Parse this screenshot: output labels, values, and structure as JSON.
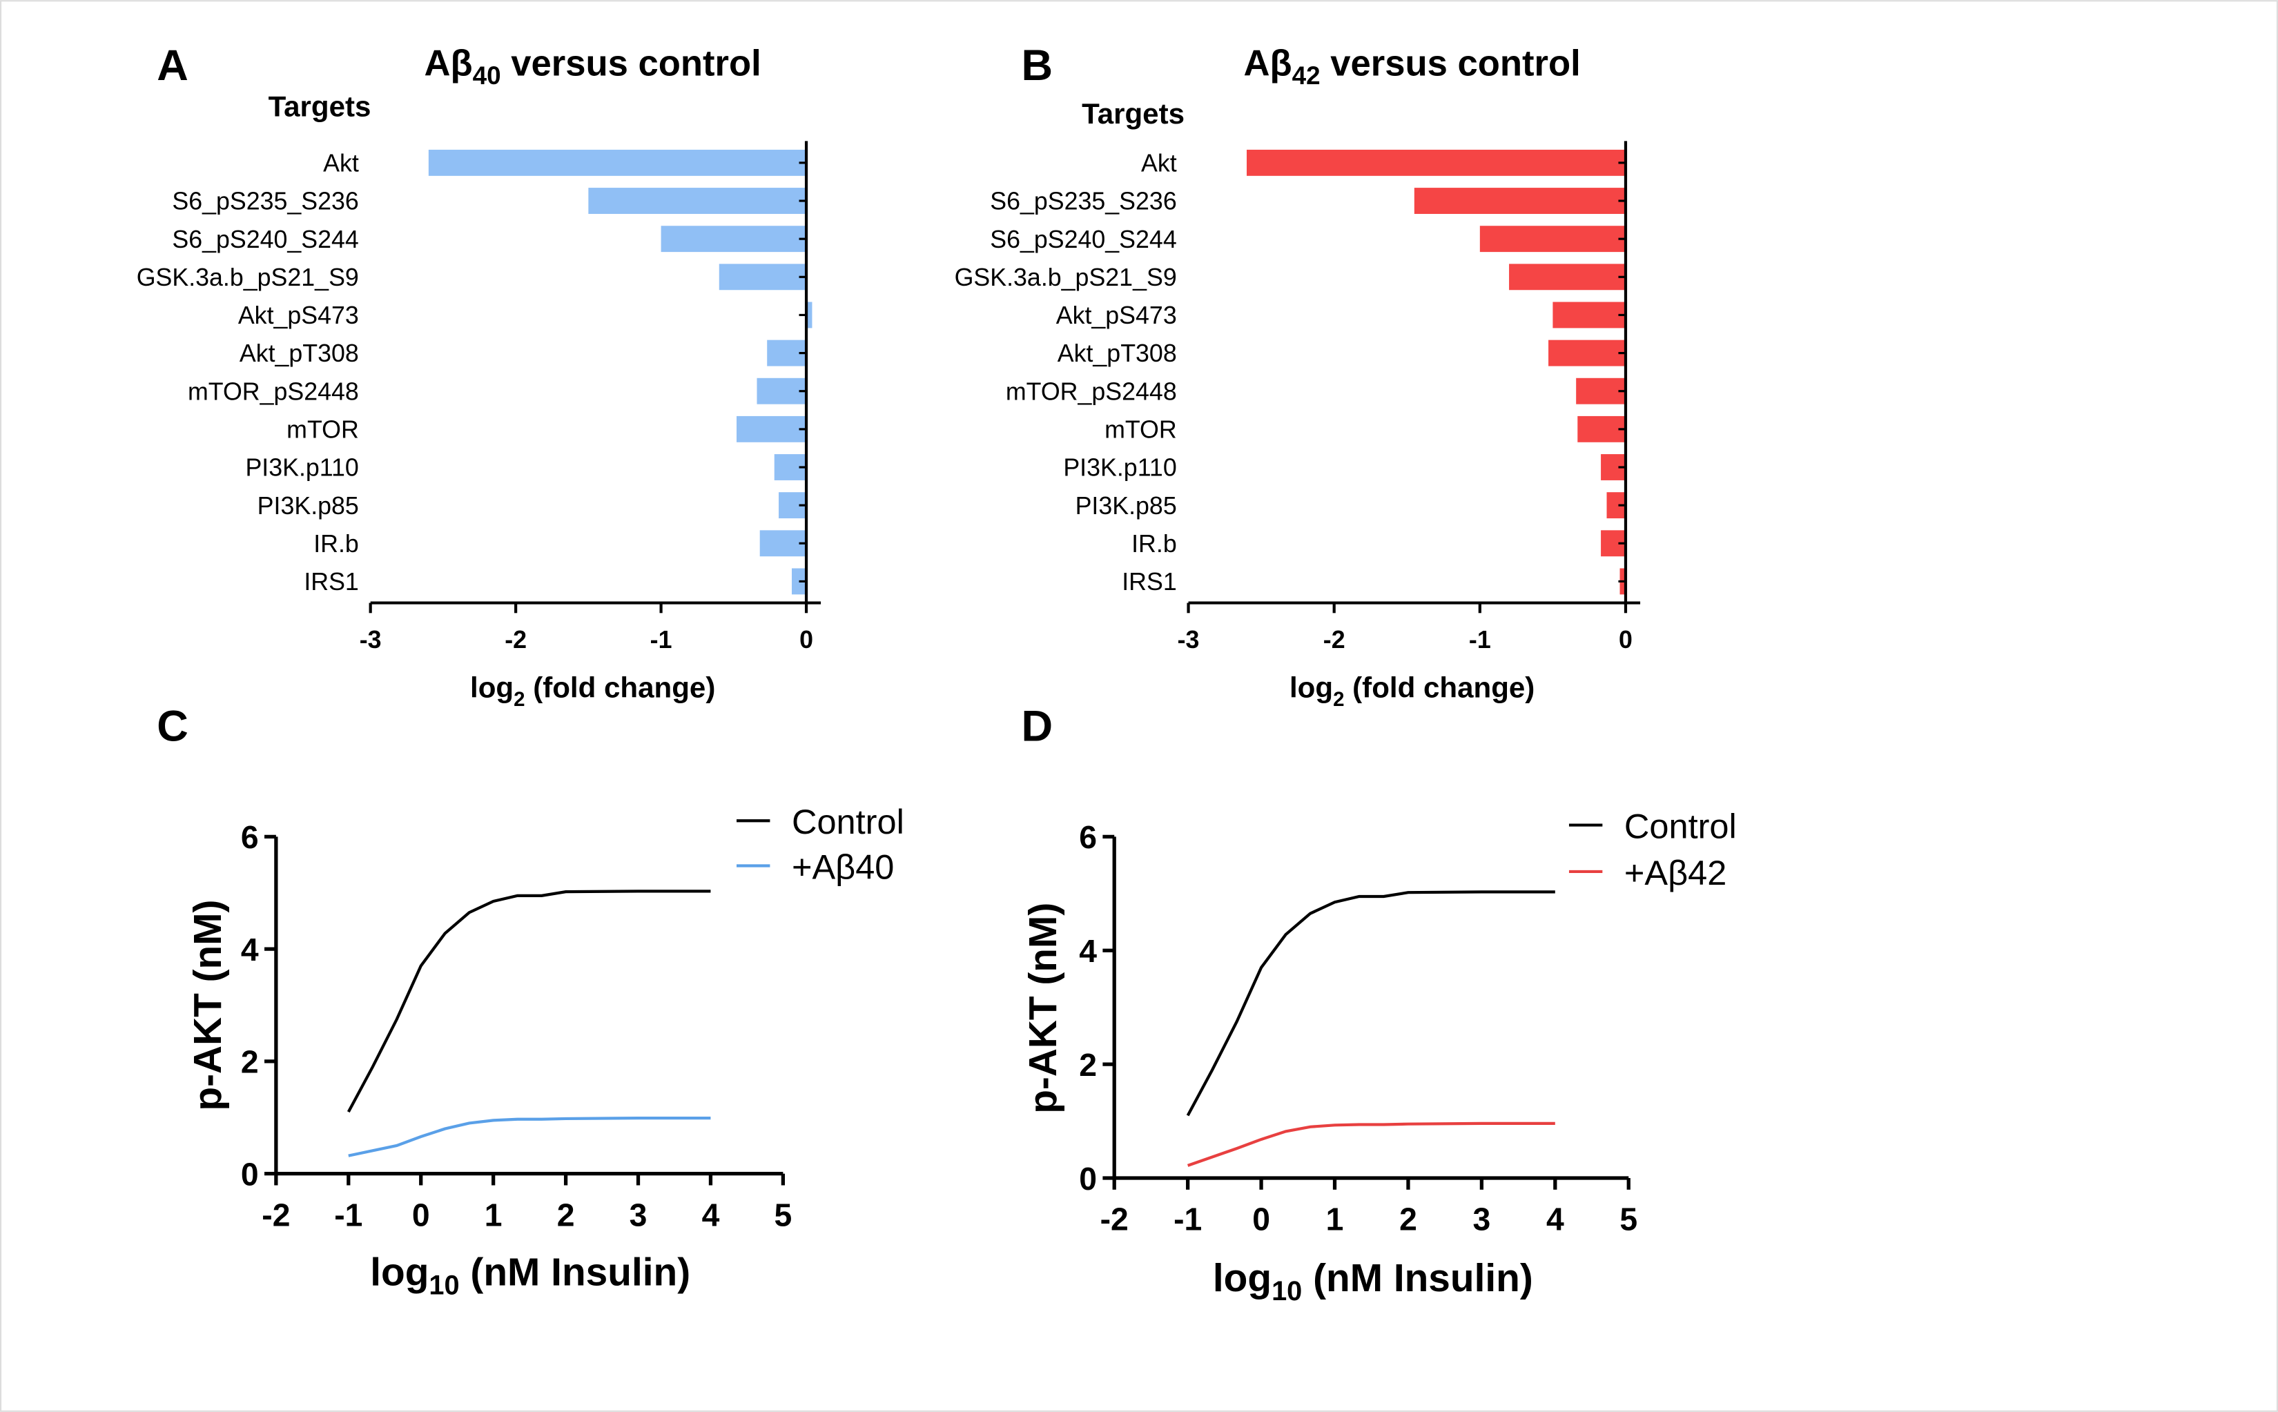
{
  "chart_data": [
    {
      "type": "bar",
      "panel": "A",
      "title": [
        "Aβ",
        "40",
        " versus control"
      ],
      "ylabel": "Targets",
      "xlabel": [
        "log",
        "2",
        " (fold change)"
      ],
      "categories": [
        "Akt",
        "S6_pS235_S236",
        "S6_pS240_S244",
        "GSK.3a.b_pS21_S9",
        "Akt_pS473",
        "Akt_pT308",
        "mTOR_pS2448",
        "mTOR",
        "PI3K.p110",
        "PI3K.p85",
        "IR.b",
        "IRS1"
      ],
      "values": [
        -2.6,
        -1.5,
        -1.0,
        -0.6,
        0.04,
        -0.27,
        -0.34,
        -0.48,
        -0.22,
        -0.19,
        -0.32,
        -0.1
      ],
      "color": "#90bff5",
      "xlim": [
        -3,
        0.1
      ],
      "xticks": [
        -3,
        -2,
        -1,
        0
      ]
    },
    {
      "type": "bar",
      "panel": "B",
      "title": [
        "Aβ",
        "42",
        " versus control"
      ],
      "ylabel": "Targets",
      "xlabel": [
        "log",
        "2",
        " (fold change)"
      ],
      "categories": [
        "Akt",
        "S6_pS235_S236",
        "S6_pS240_S244",
        "GSK.3a.b_pS21_S9",
        "Akt_pS473",
        "Akt_pT308",
        "mTOR_pS2448",
        "mTOR",
        "PI3K.p110",
        "PI3K.p85",
        "IR.b",
        "IRS1"
      ],
      "values": [
        -2.6,
        -1.45,
        -1.0,
        -0.8,
        -0.5,
        -0.53,
        -0.34,
        -0.33,
        -0.17,
        -0.13,
        -0.17,
        -0.04
      ],
      "color": "#f54545",
      "xlim": [
        -3,
        0.1
      ],
      "xticks": [
        -3,
        -2,
        -1,
        0
      ]
    },
    {
      "type": "line",
      "panel": "C",
      "ylabel": "p-AKT (nM)",
      "xlabel": [
        "log",
        "10",
        " (nM Insulin)"
      ],
      "x": [
        -1,
        -0.667,
        -0.333,
        0,
        0.333,
        0.667,
        1,
        1.333,
        1.667,
        2,
        3,
        4
      ],
      "series": [
        {
          "name": "Control",
          "color": "#000000",
          "values": [
            1.1,
            1.9,
            2.75,
            3.7,
            4.28,
            4.65,
            4.85,
            4.95,
            4.95,
            5.02,
            5.03,
            5.03
          ]
        },
        {
          "name": "+Aβ40",
          "color": "#5aa0e8",
          "values": [
            0.32,
            0.41,
            0.5,
            0.66,
            0.8,
            0.9,
            0.95,
            0.97,
            0.97,
            0.98,
            0.99,
            0.99
          ]
        }
      ],
      "xlim": [
        -2,
        5
      ],
      "ylim": [
        0,
        6
      ],
      "xticks": [
        -2,
        -1,
        0,
        1,
        2,
        3,
        4,
        5
      ],
      "yticks": [
        0,
        2,
        4,
        6
      ],
      "legend": "upper right"
    },
    {
      "type": "line",
      "panel": "D",
      "ylabel": "p-AKT (nM)",
      "xlabel": [
        "log",
        "10",
        " (nM Insulin)"
      ],
      "x": [
        -1,
        -0.667,
        -0.333,
        0,
        0.333,
        0.667,
        1,
        1.333,
        1.667,
        2,
        3,
        4
      ],
      "series": [
        {
          "name": "Control",
          "color": "#000000",
          "values": [
            1.1,
            1.9,
            2.75,
            3.7,
            4.28,
            4.65,
            4.85,
            4.95,
            4.95,
            5.02,
            5.03,
            5.03
          ]
        },
        {
          "name": "+Aβ42",
          "color": "#e84040",
          "values": [
            0.22,
            0.37,
            0.52,
            0.68,
            0.82,
            0.9,
            0.93,
            0.94,
            0.94,
            0.95,
            0.96,
            0.96
          ]
        }
      ],
      "xlim": [
        -2,
        5
      ],
      "ylim": [
        0,
        6
      ],
      "xticks": [
        -2,
        -1,
        0,
        1,
        2,
        3,
        4,
        5
      ],
      "yticks": [
        0,
        2,
        4,
        6
      ],
      "legend": "upper right"
    }
  ]
}
